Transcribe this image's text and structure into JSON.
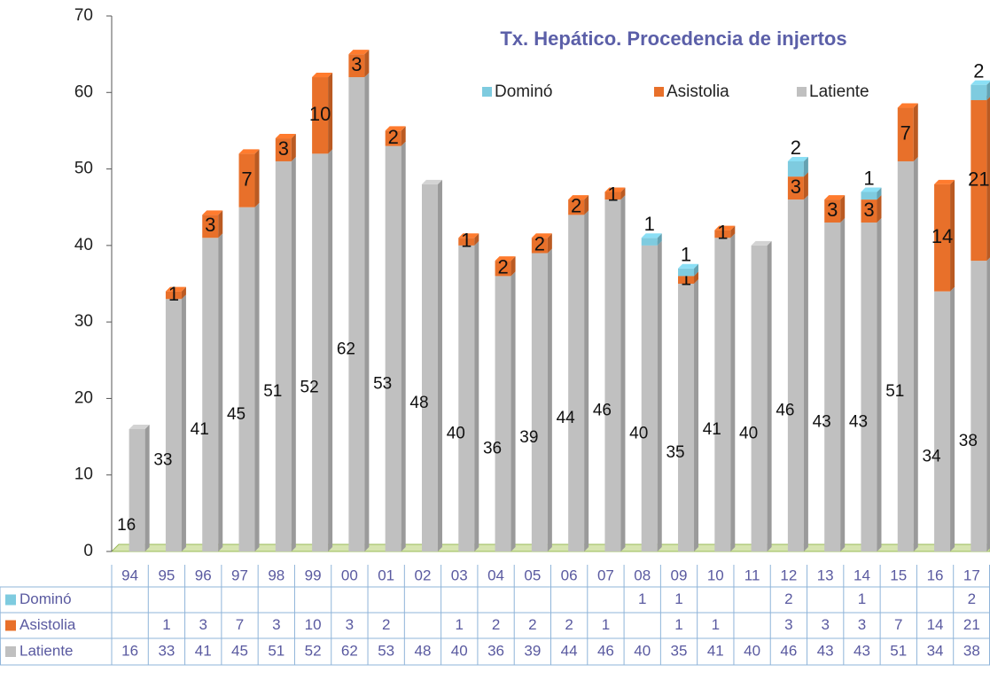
{
  "chart_data": {
    "type": "bar",
    "stacked": true,
    "title": "Tx. Hepático. Procedencia de injertos",
    "categories": [
      "94",
      "95",
      "96",
      "97",
      "98",
      "99",
      "00",
      "01",
      "02",
      "03",
      "04",
      "05",
      "06",
      "07",
      "08",
      "09",
      "10",
      "11",
      "12",
      "13",
      "14",
      "15",
      "16",
      "17"
    ],
    "series": [
      {
        "name": "Dominó",
        "color": "#7ecbdf",
        "values": [
          null,
          null,
          null,
          null,
          null,
          null,
          null,
          null,
          null,
          null,
          null,
          null,
          null,
          null,
          1,
          1,
          null,
          null,
          2,
          null,
          1,
          null,
          null,
          2
        ]
      },
      {
        "name": "Asistolia",
        "color": "#e8702a",
        "values": [
          null,
          1,
          3,
          7,
          3,
          10,
          3,
          2,
          null,
          1,
          2,
          2,
          2,
          1,
          null,
          1,
          1,
          null,
          3,
          3,
          3,
          7,
          14,
          21
        ]
      },
      {
        "name": "Latiente",
        "color": "#c0c0c0",
        "values": [
          16,
          33,
          41,
          45,
          51,
          52,
          62,
          53,
          48,
          40,
          36,
          39,
          44,
          46,
          40,
          35,
          41,
          40,
          46,
          43,
          43,
          51,
          34,
          38
        ]
      }
    ],
    "ylim": [
      0,
      70
    ],
    "yticks": [
      0,
      10,
      20,
      30,
      40,
      50,
      60,
      70
    ],
    "legend": "top-right"
  }
}
